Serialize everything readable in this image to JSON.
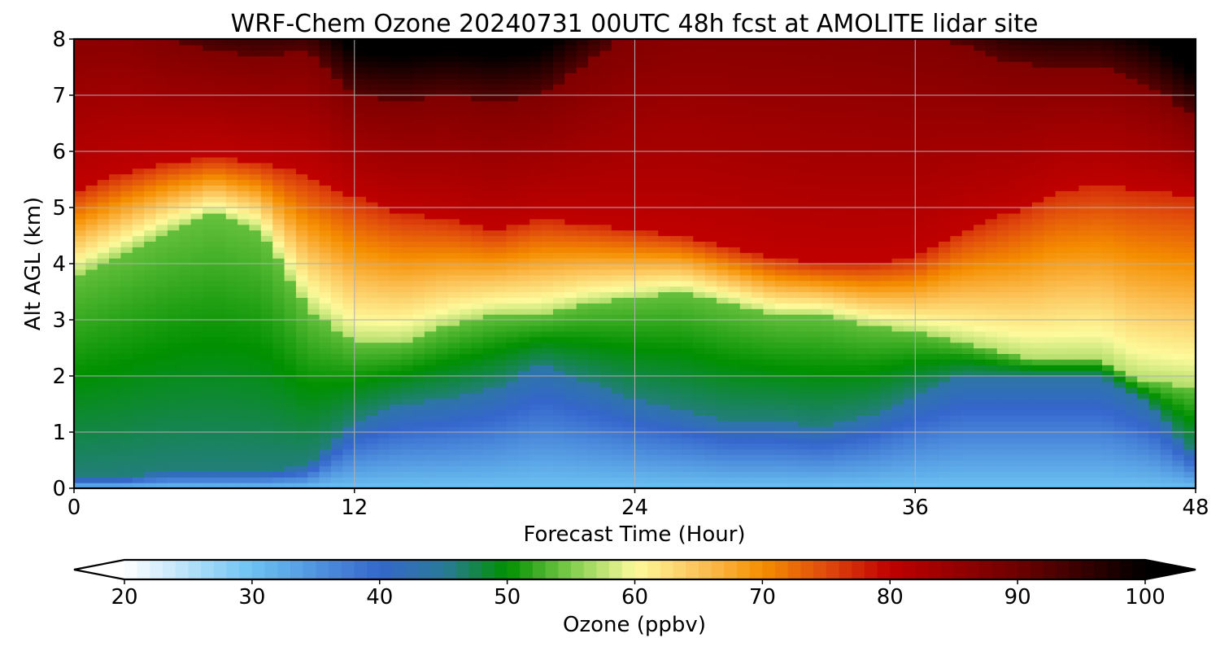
{
  "chart_data": {
    "type": "heatmap",
    "title": "WRF-Chem Ozone  20240731 00UTC 48h fcst at AMOLITE lidar site",
    "xlabel": "Forecast Time (Hour)",
    "ylabel": "Alt AGL (km)",
    "xlim": [
      0,
      48
    ],
    "ylim": [
      0,
      8
    ],
    "x_ticks": [
      0,
      12,
      24,
      36,
      48
    ],
    "x_tick_labels": [
      "0",
      "12",
      "24",
      "36",
      "48"
    ],
    "y_ticks": [
      0,
      1,
      2,
      3,
      4,
      5,
      6,
      7,
      8
    ],
    "y_tick_labels": [
      "0",
      "1",
      "2",
      "3",
      "4",
      "5",
      "6",
      "7",
      "8"
    ],
    "grid": true,
    "colorbar": {
      "label": "Ozone  (ppbv)",
      "min": 20,
      "max": 100,
      "extend": "both",
      "ticks": [
        20,
        30,
        40,
        50,
        60,
        70,
        80,
        90,
        100
      ],
      "tick_labels": [
        "20",
        "30",
        "40",
        "50",
        "60",
        "70",
        "80",
        "90",
        "100"
      ],
      "colormap_stops": [
        {
          "value": 20,
          "color": "#ffffff"
        },
        {
          "value": 30,
          "color": "#6cc2f2"
        },
        {
          "value": 40,
          "color": "#3566cc"
        },
        {
          "value": 45,
          "color": "#2a7a9a"
        },
        {
          "value": 50,
          "color": "#009000"
        },
        {
          "value": 55,
          "color": "#7fcc4c"
        },
        {
          "value": 60,
          "color": "#fdfa9c"
        },
        {
          "value": 65,
          "color": "#fcc45a"
        },
        {
          "value": 70,
          "color": "#f58e00"
        },
        {
          "value": 75,
          "color": "#e04a0c"
        },
        {
          "value": 80,
          "color": "#c00000"
        },
        {
          "value": 90,
          "color": "#6e0000"
        },
        {
          "value": 100,
          "color": "#000000"
        }
      ]
    },
    "fields": {
      "x_hours": [
        0,
        2,
        4,
        6,
        8,
        10,
        12,
        14,
        16,
        18,
        20,
        22,
        24,
        26,
        28,
        30,
        32,
        34,
        36,
        38,
        40,
        42,
        44,
        46,
        48
      ],
      "profile_levels_km": [
        0,
        0.5,
        1,
        2,
        2.5,
        3,
        3.5,
        4,
        4.5,
        5,
        5.5,
        6,
        7,
        8
      ],
      "profile_values_ppbv": [
        48,
        47,
        46,
        45,
        50,
        55,
        60,
        65,
        70,
        76,
        82,
        90,
        96,
        100
      ],
      "blue_layer_top_km": [
        0.2,
        0.2,
        0.3,
        0.3,
        0.3,
        0.4,
        1.2,
        1.5,
        1.6,
        1.8,
        2.2,
        1.9,
        1.6,
        1.4,
        1.2,
        1.2,
        1.1,
        1.3,
        1.7,
        2.0,
        2.0,
        2.0,
        2.0,
        1.5,
        0.6
      ],
      "green_layer_top_km": [
        3.8,
        4.2,
        4.6,
        4.9,
        4.6,
        3.2,
        2.6,
        2.6,
        2.9,
        3.1,
        3.1,
        3.3,
        3.4,
        3.5,
        3.3,
        3.1,
        3.1,
        2.9,
        2.8,
        2.6,
        2.4,
        2.2,
        2.1,
        1.9,
        1.8
      ],
      "red_layer_base_km": [
        5.3,
        5.6,
        5.8,
        5.9,
        5.8,
        5.6,
        5.2,
        4.9,
        4.8,
        4.6,
        4.8,
        4.7,
        4.6,
        4.5,
        4.3,
        4.1,
        4.0,
        4.0,
        4.1,
        4.6,
        4.9,
        5.3,
        5.4,
        5.3,
        5.2
      ],
      "black_layer_base_km": [
        8.5,
        8.5,
        8.0,
        7.8,
        7.7,
        7.8,
        7.0,
        6.9,
        7.0,
        6.9,
        7.0,
        7.6,
        8.2,
        8.6,
        8.6,
        8.6,
        8.5,
        8.4,
        8.2,
        7.9,
        7.6,
        7.5,
        7.5,
        7.2,
        6.6
      ]
    }
  }
}
